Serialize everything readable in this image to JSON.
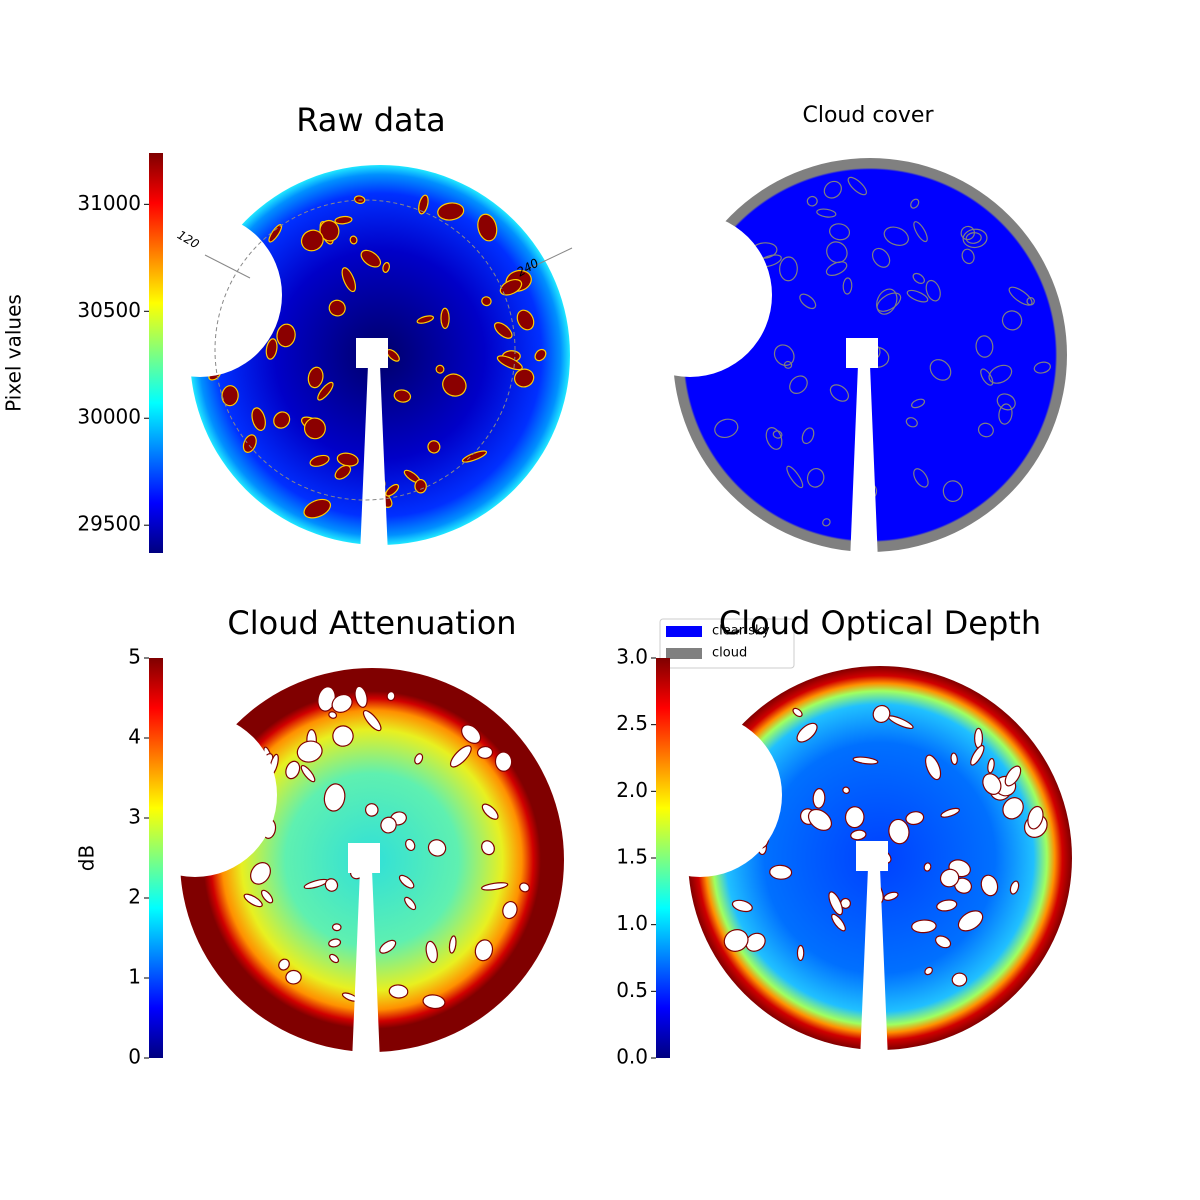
{
  "chart_data": [
    {
      "type": "image",
      "title": "Raw data",
      "cmap": "jet",
      "colorbar": {
        "label": "Pixel values",
        "lim": [
          29370,
          31240
        ],
        "ticks": [
          29500,
          30000,
          30500,
          31000
        ]
      },
      "polar_labels": [
        "120",
        "240"
      ]
    },
    {
      "type": "image",
      "title": "Cloud cover",
      "legend": [
        {
          "name": "clear sky",
          "color": "#0000ff"
        },
        {
          "name": "cloud",
          "color": "#808080"
        }
      ]
    },
    {
      "type": "image",
      "title": "Cloud Attenuation",
      "cmap": "jet",
      "colorbar": {
        "label": "dB",
        "lim": [
          0,
          5
        ],
        "ticks": [
          0,
          1,
          2,
          3,
          4,
          5
        ]
      }
    },
    {
      "type": "image",
      "title": "Cloud Optical Depth",
      "cmap": "jet",
      "colorbar": {
        "lim": [
          0,
          3
        ],
        "ticks": [
          {
            "value": 0,
            "label": "0.0"
          },
          0.5,
          {
            "value": 1,
            "label": "1.0"
          },
          1.5,
          {
            "value": 2,
            "label": "2.0"
          },
          2.5,
          {
            "value": 3,
            "label": "3.0"
          }
        ]
      }
    }
  ]
}
